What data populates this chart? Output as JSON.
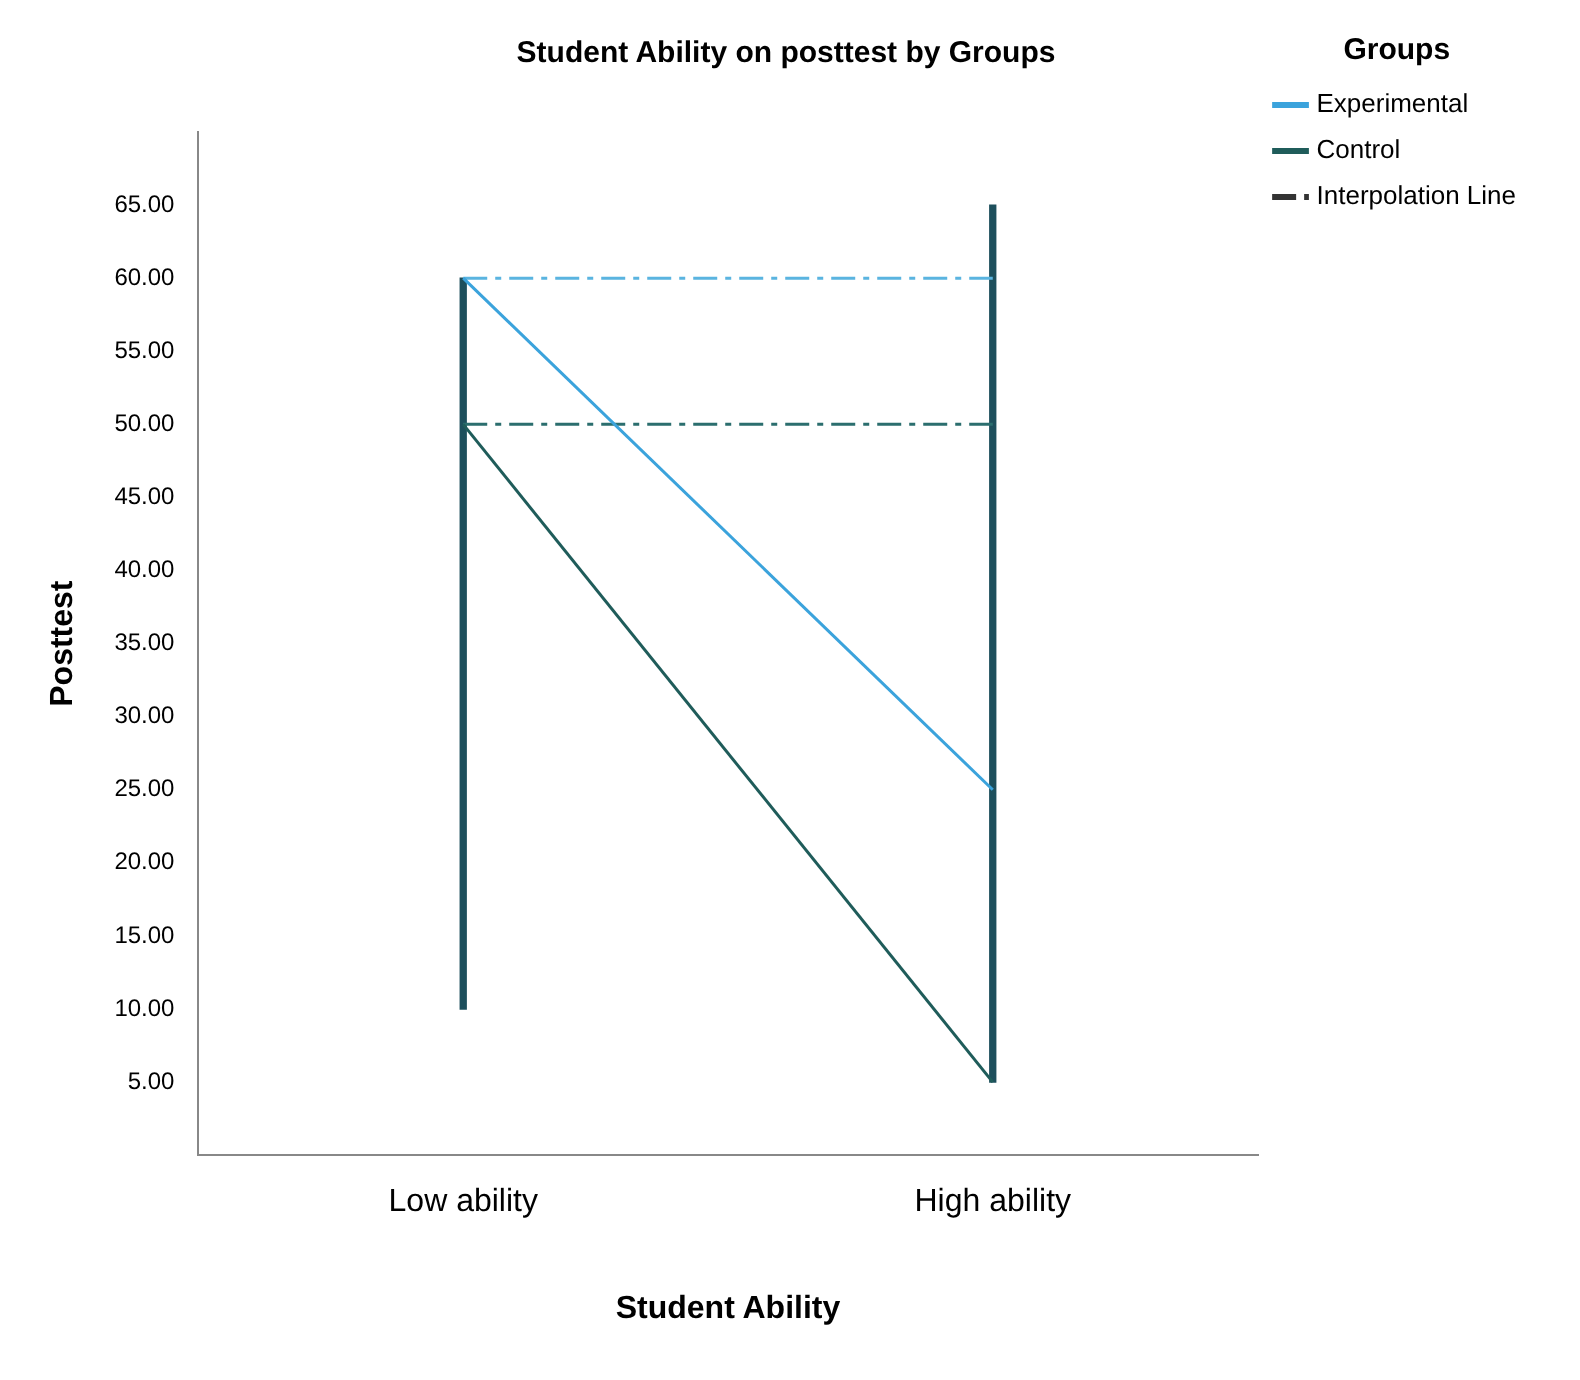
{
  "chart_data": {
    "type": "line",
    "title": "Student Ability on posttest by Groups",
    "xlabel": "Student Ability",
    "ylabel": "Posttest",
    "legend_title": "Groups",
    "categories": [
      "Low ability",
      "High ability"
    ],
    "series": [
      {
        "type": "bar",
        "color": "#1d4f5c",
        "base": [
          10,
          5
        ],
        "values": [
          50,
          60
        ]
      },
      {
        "name": "Experimental",
        "color": "#3ba3dc",
        "values": [
          60,
          25
        ]
      },
      {
        "name": "Control",
        "color": "#1f5c5a",
        "values": [
          50,
          5
        ]
      },
      {
        "color": "#5ab4e0",
        "values": [
          60,
          60
        ],
        "line_style": "dashed"
      },
      {
        "color": "#2b6e6e",
        "values": [
          50,
          50
        ],
        "line_style": "dashed"
      },
      {
        "name": "Interpolation Line",
        "color": "#333333",
        "values": [
          null,
          null
        ],
        "line_style": "dashed"
      }
    ],
    "ylim": [
      0,
      70
    ],
    "yticks": [
      {
        "value": 5,
        "label": "5.00"
      },
      {
        "value": 10,
        "label": "10.00"
      },
      {
        "value": 15,
        "label": "15.00"
      },
      {
        "value": 20,
        "label": "20.00"
      },
      {
        "value": 25,
        "label": "25.00"
      },
      {
        "value": 30,
        "label": "30.00"
      },
      {
        "value": 35,
        "label": "35.00"
      },
      {
        "value": 40,
        "label": "40.00"
      },
      {
        "value": 45,
        "label": "45.00"
      },
      {
        "value": 50,
        "label": "50.00"
      },
      {
        "value": 55,
        "label": "55.00"
      },
      {
        "value": 60,
        "label": "60.00"
      },
      {
        "value": 65,
        "label": "65.00"
      }
    ],
    "grid": false,
    "legend": "right",
    "marker": "none"
  }
}
